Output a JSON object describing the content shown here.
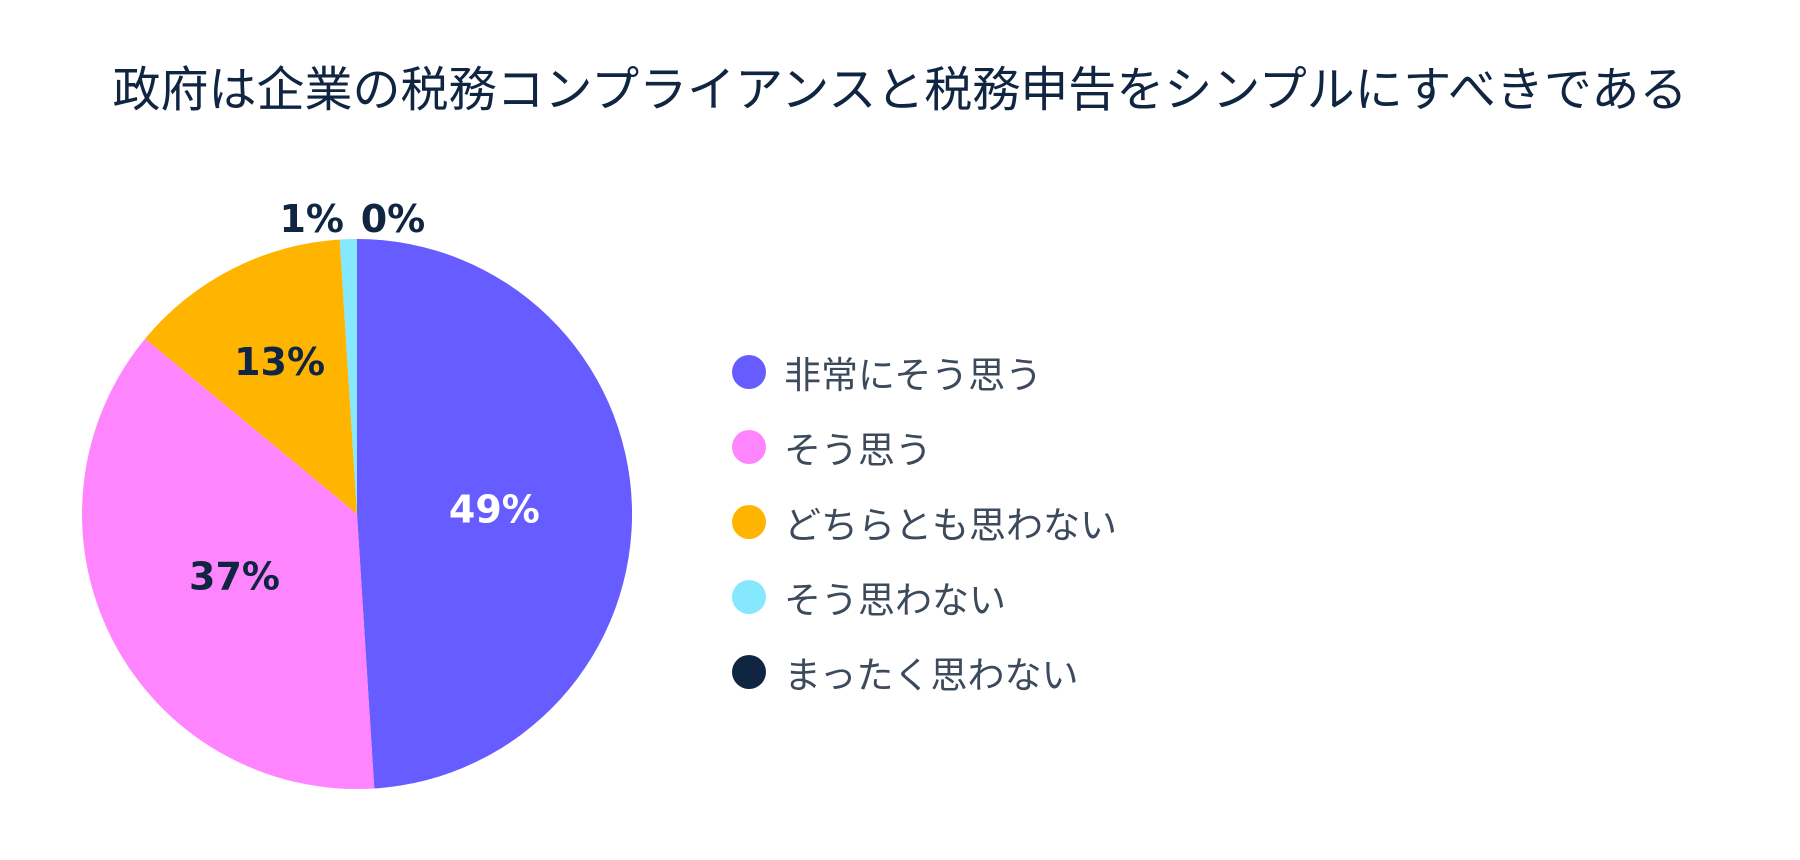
{
  "chart_data": {
    "type": "pie",
    "title": "政府は企業の税務コンプライアンスと税務申告をシンプルにすべきである",
    "start_angle": "top",
    "direction": "clockwise",
    "legend_position": "right",
    "categories": [
      "非常にそう思う",
      "そう思う",
      "どちらとも思わない",
      "そう思わない",
      "まったく思わない"
    ],
    "values": [
      49,
      37,
      13,
      1,
      0
    ],
    "value_labels": [
      "49%",
      "37%",
      "13%",
      "1%",
      "0%"
    ],
    "colors": [
      "#665cff",
      "#ff85ff",
      "#ffb400",
      "#85e8ff",
      "#0f2542"
    ],
    "label_colors": [
      "#ffffff",
      "#0f2542",
      "#0f2542",
      "#0f2542",
      "#0f2542"
    ]
  }
}
